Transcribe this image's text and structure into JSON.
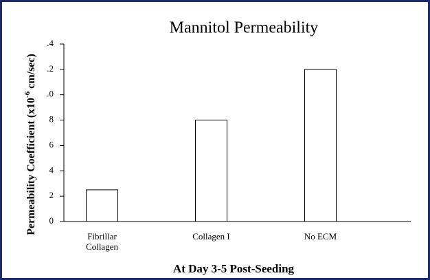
{
  "chart_data": {
    "type": "bar",
    "title": "Mannitol Permeability",
    "ylabel": [
      "Permeability Coefficient (x10",
      "-6",
      " cm/sec)"
    ],
    "xlabel": "At Day 3-5 Post-Seeding",
    "categories": [
      "Fibrillar Collagen",
      "Collagen I",
      "No ECM"
    ],
    "values": [
      2.5,
      8,
      12
    ],
    "color": "#ffffff",
    "ylim": [
      0,
      14
    ],
    "yticks": [
      0,
      2,
      4,
      6,
      8,
      {
        "value": 10,
        "label": ".0"
      },
      {
        "value": 12,
        "label": ".2"
      },
      {
        "value": 14,
        "label": ".4"
      }
    ],
    "grid": false
  }
}
